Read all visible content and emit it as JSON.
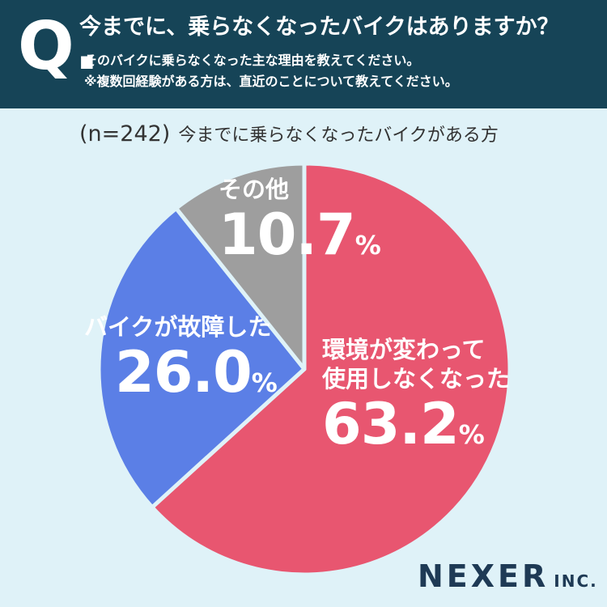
{
  "header": {
    "mark": "Q.",
    "title": "今までに、乗らなくなったバイクはありますか？",
    "subtitle1": "そのバイクに乗らなくなった主な理由を教えてください。",
    "subtitle2": "※複数回経験がある方は、直近のことについて教えてください。"
  },
  "sample": {
    "n": "(n=242)",
    "label": "今までに乗らなくなったバイクがある方"
  },
  "chart_data": {
    "type": "pie",
    "categories": [
      "環境が変わって使用しなくなった",
      "バイクが故障した",
      "その他"
    ],
    "values": [
      63.2,
      26.0,
      10.7
    ],
    "unit": "%",
    "colors": [
      "#e85670",
      "#5b7fe6",
      "#9e9e9e"
    ],
    "labels": {
      "red_line1": "環境が変わって",
      "red_line2": "使用しなくなった",
      "red_value": "63.2",
      "blue_name": "バイクが故障した",
      "blue_value": "26.0",
      "gray_name": "その他",
      "gray_value": "10.7",
      "unit": "%"
    }
  },
  "brand": {
    "name": "NEXER",
    "suffix": "INC."
  }
}
